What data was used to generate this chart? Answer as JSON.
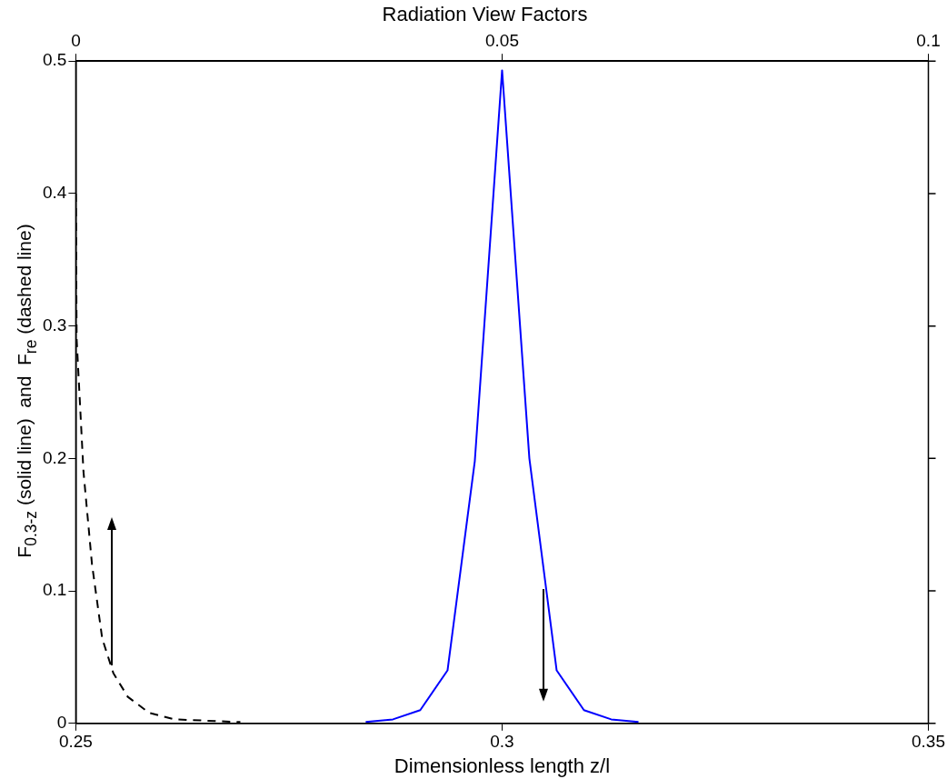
{
  "chart_data": {
    "type": "line",
    "title": "Radiation View Factors",
    "xlabel": "Dimensionless length z/l",
    "ylabel": "F$_{0.3-z}$ (solid line)  and  F$_{re}$ (dashed line)",
    "xlim": [
      0.25,
      0.35
    ],
    "xticks": [
      0.25,
      0.3,
      0.35
    ],
    "x2lim": [
      0,
      0.1
    ],
    "x2ticks": [
      0,
      0.05,
      0.1
    ],
    "ylim": [
      0,
      0.5
    ],
    "yticks": [
      0,
      0.1,
      0.2,
      0.3,
      0.4,
      0.5
    ],
    "grid": false,
    "legend": false,
    "marker": "none",
    "series": [
      {
        "color": "#0000ff",
        "line_style": "solid",
        "x": [
          0.284,
          0.2872,
          0.2904,
          0.2936,
          0.2968,
          0.3,
          0.3032,
          0.3064,
          0.3096,
          0.3128,
          0.316
        ],
        "values": [
          0.001,
          0.003,
          0.01,
          0.04,
          0.198,
          0.493,
          0.2,
          0.04,
          0.01,
          0.003,
          0.001
        ]
      },
      {
        "color": "#000000",
        "line_style": "dashed",
        "axis": "x2",
        "x": [
          0,
          0.0001,
          0.0009,
          0.0019,
          0.0031,
          0.0044,
          0.0061,
          0.0086,
          0.0116,
          0.0193
        ],
        "values": [
          0.4,
          0.29,
          0.19,
          0.12,
          0.064,
          0.038,
          0.02,
          0.008,
          0.003,
          0.001
        ]
      }
    ]
  }
}
